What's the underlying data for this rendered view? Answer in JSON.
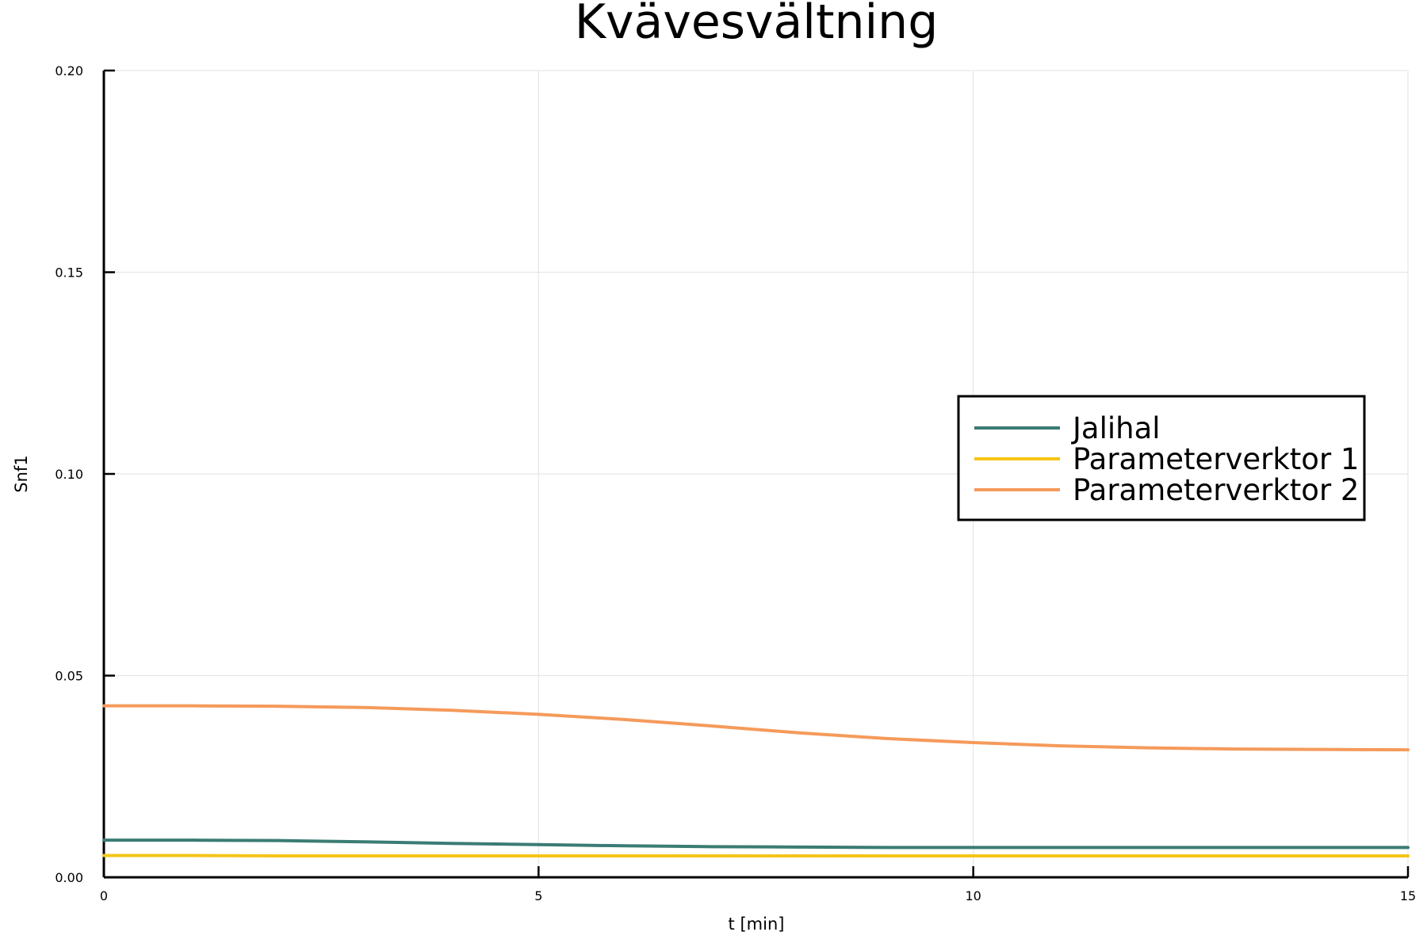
{
  "chart_data": {
    "type": "line",
    "title": "Kvävesvältning",
    "xlabel": "t [min]",
    "ylabel": "Snf1",
    "xlim": [
      0,
      15
    ],
    "ylim": [
      0,
      0.2
    ],
    "xticks": [
      0,
      5,
      10,
      15
    ],
    "xtick_labels": [
      "0",
      "5",
      "10",
      "15"
    ],
    "yticks": [
      0,
      0.05,
      0.1,
      0.15,
      0.2
    ],
    "ytick_labels": [
      "0.00",
      "0.05",
      "0.10",
      "0.15",
      "0.20"
    ],
    "grid": true,
    "legend_position": "right",
    "series": [
      {
        "name": "Jalihal",
        "color": "#3a7c73",
        "x": [
          0,
          1,
          2,
          3,
          4,
          5,
          6,
          7,
          8,
          9,
          10,
          11,
          12,
          13,
          14,
          15
        ],
        "values": [
          0.0092,
          0.0092,
          0.0091,
          0.0088,
          0.0084,
          0.0081,
          0.0078,
          0.0076,
          0.0075,
          0.0074,
          0.0074,
          0.0074,
          0.0074,
          0.0074,
          0.0074,
          0.0074
        ]
      },
      {
        "name": "Parameterverktor 1",
        "color": "#f5c518",
        "x": [
          0,
          1,
          2,
          3,
          4,
          5,
          6,
          7,
          8,
          9,
          10,
          11,
          12,
          13,
          14,
          15
        ],
        "values": [
          0.0054,
          0.0054,
          0.0053,
          0.0053,
          0.0053,
          0.0053,
          0.0053,
          0.0053,
          0.0053,
          0.0053,
          0.0053,
          0.0053,
          0.0053,
          0.0053,
          0.0053,
          0.0053
        ]
      },
      {
        "name": "Parameterverktor 2",
        "color": "#f59a5b",
        "x": [
          0,
          1,
          2,
          3,
          4,
          5,
          6,
          7,
          8,
          9,
          10,
          11,
          12,
          13,
          14,
          15
        ],
        "values": [
          0.0425,
          0.0425,
          0.0424,
          0.0421,
          0.0414,
          0.0404,
          0.0391,
          0.0375,
          0.0358,
          0.0344,
          0.0334,
          0.0326,
          0.0321,
          0.0318,
          0.0317,
          0.0316
        ]
      }
    ]
  }
}
